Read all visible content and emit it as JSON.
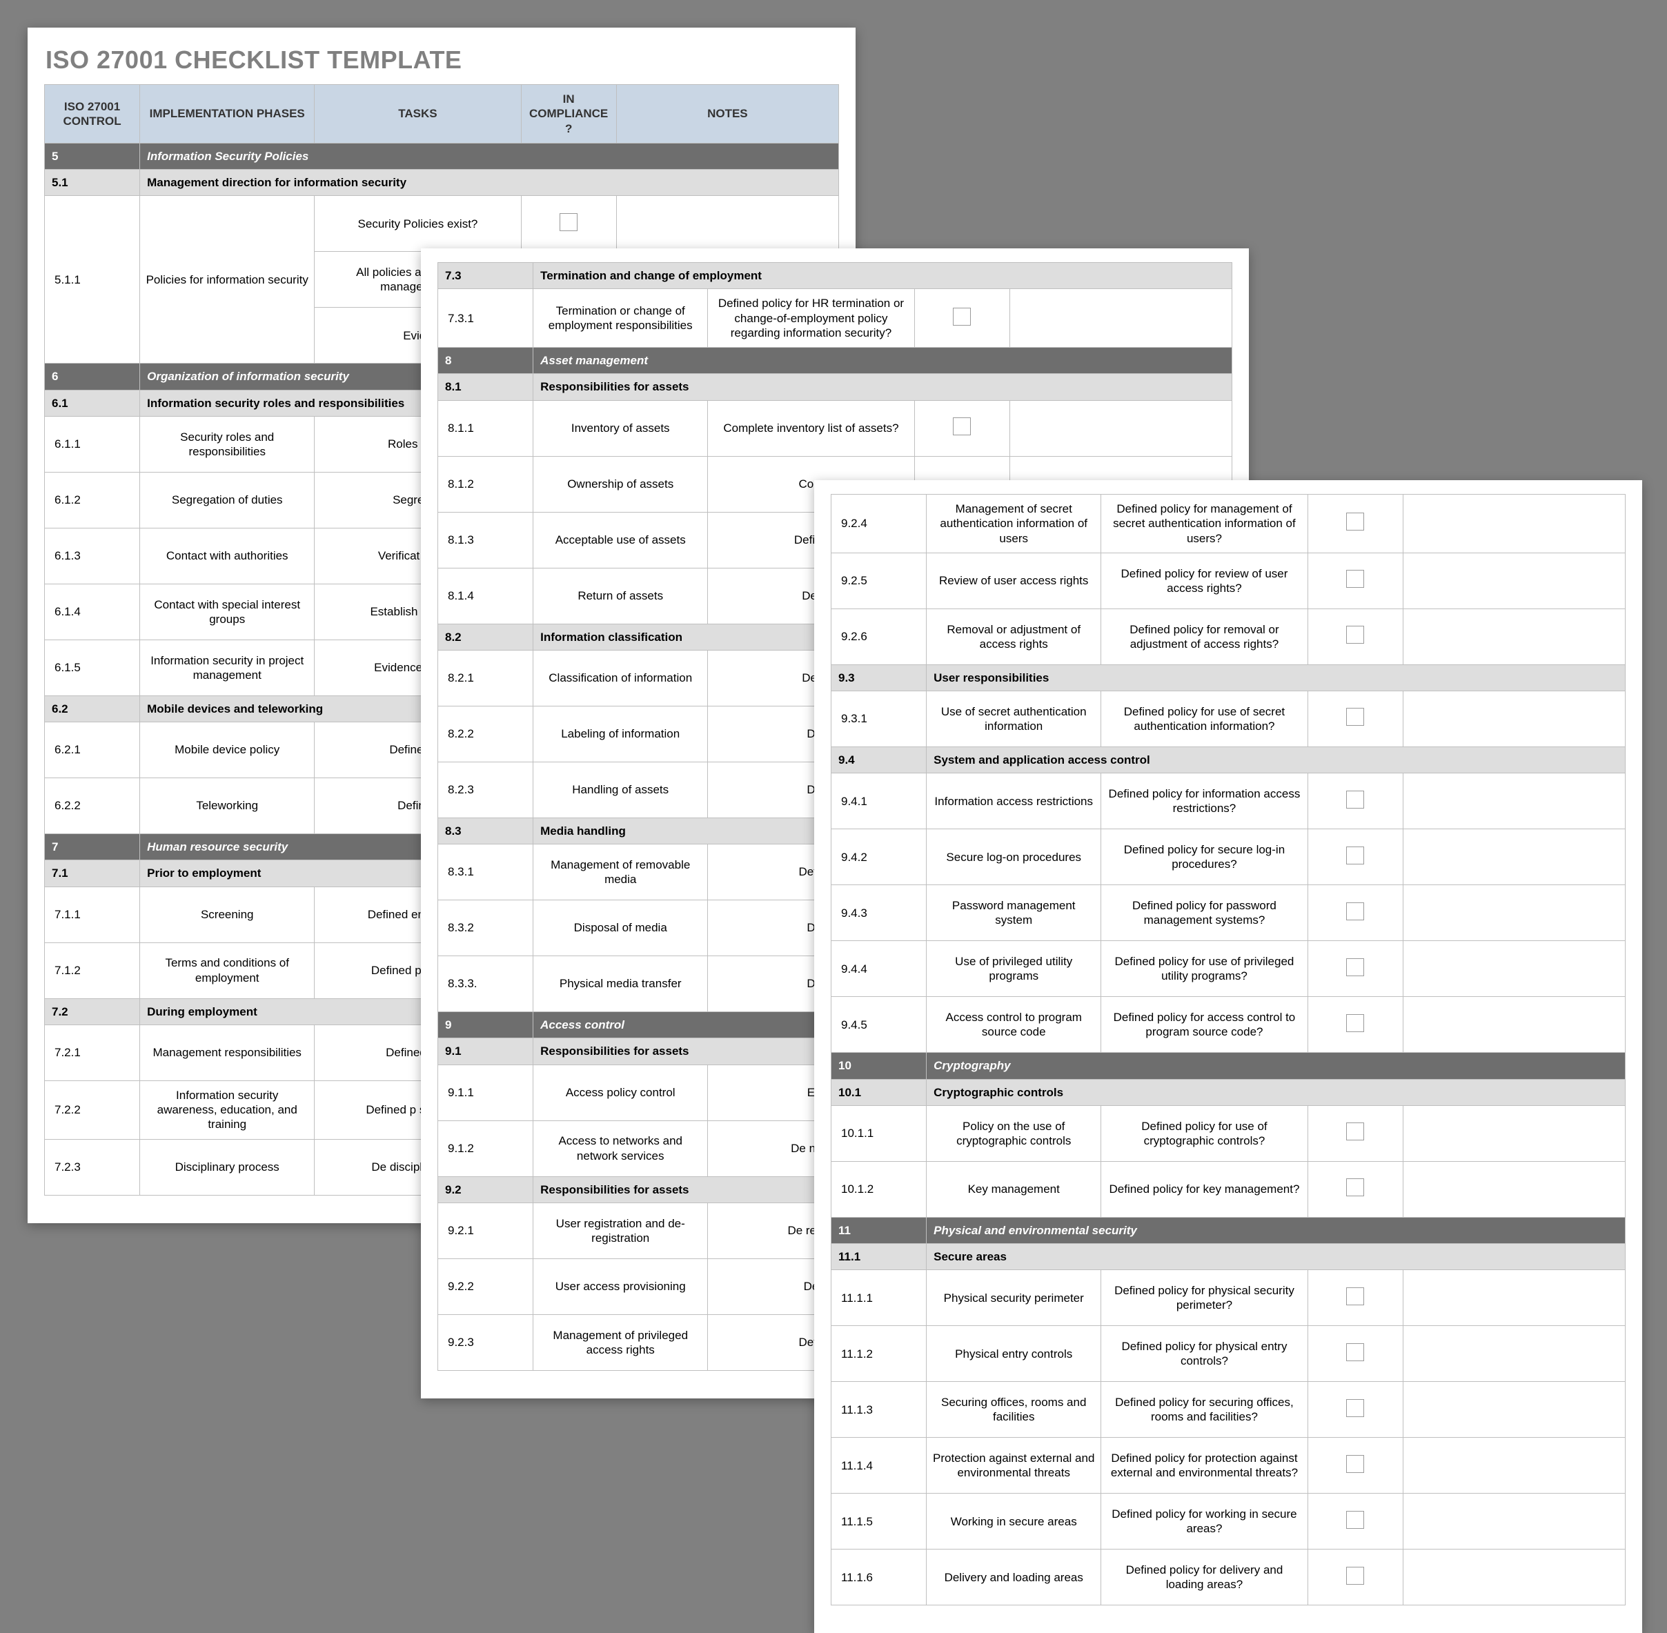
{
  "colors": {
    "page_bg": "#808080",
    "paper_bg": "#ffffff",
    "header_bg": "#c9d6e4",
    "section_bg": "#6e6e6e",
    "subsection_bg": "#dedede",
    "border": "#bfbfbf",
    "title_color": "#808080",
    "checkbox_border": "#9a9a9a"
  },
  "title": "ISO 27001 CHECKLIST TEMPLATE",
  "headers": {
    "control": "ISO 27001 CONTROL",
    "phases": "IMPLEMENTATION PHASES",
    "tasks": "TASKS",
    "compliance": "IN COMPLIANCE?",
    "notes": "NOTES"
  },
  "page1": [
    {
      "type": "section",
      "id": "5",
      "label": "Information Security Policies"
    },
    {
      "type": "subsection",
      "id": "5.1",
      "label": "Management direction for information security"
    },
    {
      "type": "item",
      "id": "5.1.1",
      "phase": "Policies for information security",
      "task": "Security Policies exist?",
      "rowspan_id": 3,
      "rowspan_phase": 3,
      "cb": true
    },
    {
      "type": "item",
      "task": "All policies approved by management?",
      "cb": true
    },
    {
      "type": "item",
      "task": "Evide"
    },
    {
      "type": "section",
      "id": "6",
      "label": "Organization of information security"
    },
    {
      "type": "subsection",
      "id": "6.1",
      "label": "Information security roles and responsibilities"
    },
    {
      "type": "item",
      "id": "6.1.1",
      "phase": "Security roles and responsibilities",
      "task": "Roles and r"
    },
    {
      "type": "item",
      "id": "6.1.2",
      "phase": "Segregation of duties",
      "task": "Segregati"
    },
    {
      "type": "item",
      "id": "6.1.3",
      "phase": "Contact with authorities",
      "task": "Verificat\ncontac"
    },
    {
      "type": "item",
      "id": "6.1.4",
      "phase": "Contact with special interest groups",
      "task": "Establish\ninteres\nc"
    },
    {
      "type": "item",
      "id": "6.1.5",
      "phase": "Information security in project management",
      "task": "Evidence o\nproje"
    },
    {
      "type": "subsection",
      "id": "6.2",
      "label": "Mobile devices and teleworking"
    },
    {
      "type": "item",
      "id": "6.2.1",
      "phase": "Mobile device policy",
      "task": "Defined po"
    },
    {
      "type": "item",
      "id": "6.2.2",
      "phase": "Teleworking",
      "task": "Defined"
    },
    {
      "type": "section",
      "id": "7",
      "label": "Human resource security"
    },
    {
      "type": "subsection",
      "id": "7.1",
      "label": "Prior to employment"
    },
    {
      "type": "item",
      "id": "7.1.1",
      "phase": "Screening",
      "task": "Defined\nemployees"
    },
    {
      "type": "item",
      "id": "7.1.2",
      "phase": "Terms and conditions of employment",
      "task": "Defined p\nconditic"
    },
    {
      "type": "subsection",
      "id": "7.2",
      "label": "During employment"
    },
    {
      "type": "item",
      "id": "7.2.1",
      "phase": "Management responsibilities",
      "task": "Defined p\nre"
    },
    {
      "type": "item",
      "id": "7.2.2",
      "phase": "Information security awareness, education, and training",
      "task": "Defined p\nsecurity a"
    },
    {
      "type": "item",
      "id": "7.2.3",
      "phase": "Disciplinary process",
      "task": "De\ndisciplina\ninfor"
    }
  ],
  "page2": [
    {
      "type": "subsection",
      "id": "7.3",
      "label": "Termination and change of employment"
    },
    {
      "type": "item",
      "id": "7.3.1",
      "phase": "Termination or change of employment responsibilities",
      "task": "Defined policy for HR termination or change-of-employment policy regarding information security?",
      "cb": true
    },
    {
      "type": "section",
      "id": "8",
      "label": "Asset management"
    },
    {
      "type": "subsection",
      "id": "8.1",
      "label": "Responsibilities for assets"
    },
    {
      "type": "item",
      "id": "8.1.1",
      "phase": "Inventory of assets",
      "task": "Complete inventory list of assets?",
      "cb": true
    },
    {
      "type": "item",
      "id": "8.1.2",
      "phase": "Ownership of assets",
      "task": "Com"
    },
    {
      "type": "item",
      "id": "8.1.3",
      "phase": "Acceptable use of assets",
      "task": "Define"
    },
    {
      "type": "item",
      "id": "8.1.4",
      "phase": "Return of assets",
      "task": "Def"
    },
    {
      "type": "subsection",
      "id": "8.2",
      "label": "Information classification"
    },
    {
      "type": "item",
      "id": "8.2.1",
      "phase": "Classification of information",
      "task": "Def"
    },
    {
      "type": "item",
      "id": "8.2.2",
      "phase": "Labeling of information",
      "task": "D"
    },
    {
      "type": "item",
      "id": "8.2.3",
      "phase": "Handling of assets",
      "task": "D"
    },
    {
      "type": "subsection",
      "id": "8.3",
      "label": "Media handling"
    },
    {
      "type": "item",
      "id": "8.3.1",
      "phase": "Management of removable media",
      "task": "Defir"
    },
    {
      "type": "item",
      "id": "8.3.2",
      "phase": "Disposal of media",
      "task": "D"
    },
    {
      "type": "item",
      "id": "8.3.3.",
      "phase": "Physical media transfer",
      "task": "D"
    },
    {
      "type": "section",
      "id": "9",
      "label": "Access control"
    },
    {
      "type": "subsection",
      "id": "9.1",
      "label": "Responsibilities for assets"
    },
    {
      "type": "item",
      "id": "9.1.1",
      "phase": "Access policy control",
      "task": "E"
    },
    {
      "type": "item",
      "id": "9.1.2",
      "phase": "Access to networks and network services",
      "task": "De\nnetv"
    },
    {
      "type": "subsection",
      "id": "9.2",
      "label": "Responsibilities for assets"
    },
    {
      "type": "item",
      "id": "9.2.1",
      "phase": "User registration and de-registration",
      "task": "De\nregist"
    },
    {
      "type": "item",
      "id": "9.2.2",
      "phase": "User access provisioning",
      "task": "De"
    },
    {
      "type": "item",
      "id": "9.2.3",
      "phase": "Management of privileged access rights",
      "task": "Defir"
    }
  ],
  "page3": [
    {
      "type": "item",
      "id": "9.2.4",
      "phase": "Management of secret authentication information of users",
      "task": "Defined policy for management of secret authentication information of users?",
      "cb": true
    },
    {
      "type": "item",
      "id": "9.2.5",
      "phase": "Review of user access rights",
      "task": "Defined policy for review of user access rights?",
      "cb": true
    },
    {
      "type": "item",
      "id": "9.2.6",
      "phase": "Removal or adjustment of access rights",
      "task": "Defined policy for removal or adjustment of access rights?",
      "cb": true
    },
    {
      "type": "subsection",
      "id": "9.3",
      "label": "User responsibilities"
    },
    {
      "type": "item",
      "id": "9.3.1",
      "phase": "Use of secret authentication information",
      "task": "Defined policy for use of secret authentication information?",
      "cb": true
    },
    {
      "type": "subsection",
      "id": "9.4",
      "label": "System and application access control"
    },
    {
      "type": "item",
      "id": "9.4.1",
      "phase": "Information access restrictions",
      "task": "Defined policy for information access restrictions?",
      "cb": true
    },
    {
      "type": "item",
      "id": "9.4.2",
      "phase": "Secure log-on procedures",
      "task": "Defined policy for secure log-in procedures?",
      "cb": true
    },
    {
      "type": "item",
      "id": "9.4.3",
      "phase": "Password management system",
      "task": "Defined policy for password management systems?",
      "cb": true
    },
    {
      "type": "item",
      "id": "9.4.4",
      "phase": "Use of privileged utility programs",
      "task": "Defined policy for use of privileged utility programs?",
      "cb": true
    },
    {
      "type": "item",
      "id": "9.4.5",
      "phase": "Access control to program source code",
      "task": "Defined policy for access control to program source code?",
      "cb": true
    },
    {
      "type": "section",
      "id": "10",
      "label": "Cryptography"
    },
    {
      "type": "subsection",
      "id": "10.1",
      "label": "Cryptographic controls"
    },
    {
      "type": "item",
      "id": "10.1.1",
      "phase": "Policy on the use of cryptographic controls",
      "task": "Defined policy for use of cryptographic controls?",
      "cb": true
    },
    {
      "type": "item",
      "id": "10.1.2",
      "phase": "Key management",
      "task": "Defined policy for key management?",
      "cb": true
    },
    {
      "type": "section",
      "id": "11",
      "label": "Physical and environmental security"
    },
    {
      "type": "subsection",
      "id": "11.1",
      "label": "Secure areas"
    },
    {
      "type": "item",
      "id": "11.1.1",
      "phase": "Physical security perimeter",
      "task": "Defined policy for physical security perimeter?",
      "cb": true
    },
    {
      "type": "item",
      "id": "11.1.2",
      "phase": "Physical entry controls",
      "task": "Defined policy for physical entry controls?",
      "cb": true
    },
    {
      "type": "item",
      "id": "11.1.3",
      "phase": "Securing offices, rooms and facilities",
      "task": "Defined policy for securing offices, rooms and facilities?",
      "cb": true
    },
    {
      "type": "item",
      "id": "11.1.4",
      "phase": "Protection against external and environmental threats",
      "task": "Defined policy for protection against external and environmental threats?",
      "cb": true
    },
    {
      "type": "item",
      "id": "11.1.5",
      "phase": "Working in secure areas",
      "task": "Defined policy for working in secure areas?",
      "cb": true
    },
    {
      "type": "item",
      "id": "11.1.6",
      "phase": "Delivery and loading areas",
      "task": "Defined policy for delivery and loading areas?",
      "cb": true
    }
  ]
}
